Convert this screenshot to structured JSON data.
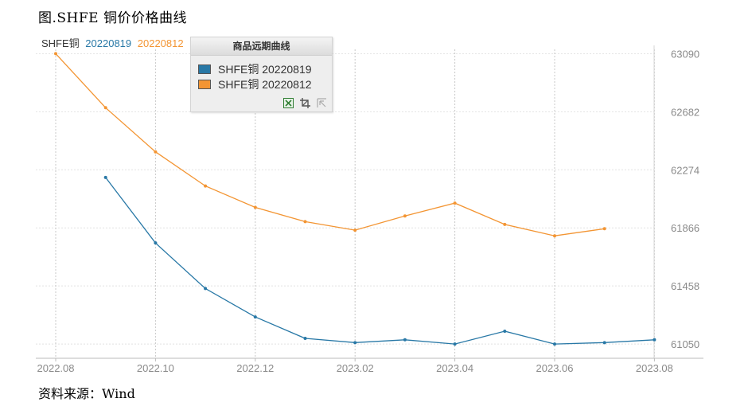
{
  "title": "图.SHFE 铜价价格曲线",
  "source": "资料来源：Wind",
  "legend": {
    "title": "商品远期曲线",
    "items": [
      {
        "label": "SHFE铜 20220819",
        "color": "#2878a6"
      },
      {
        "label": "SHFE铜 20220812",
        "color": "#f39533"
      }
    ],
    "tools": [
      "excel-export-icon",
      "crop-icon",
      "select-icon"
    ]
  },
  "series_header": {
    "prefix": "SHFE铜",
    "labels": [
      "20220819",
      "20220812"
    ]
  },
  "chart_data": {
    "type": "line",
    "xlabel": "",
    "ylabel": "",
    "x_ticks": [
      "2022.08",
      "2022.10",
      "2022.12",
      "2023.02",
      "2023.04",
      "2023.06",
      "2023.08"
    ],
    "y_ticks": [
      61050,
      61458,
      61866,
      62274,
      62682,
      63090
    ],
    "ylim": [
      60950,
      63120
    ],
    "y_axis_position": "right",
    "grid": true,
    "legend_position": "top-left",
    "series": [
      {
        "name": "SHFE铜 20220819",
        "color": "#2878a6",
        "x": [
          "2022.09",
          "2022.10",
          "2022.11",
          "2022.12",
          "2023.01",
          "2023.02",
          "2023.03",
          "2023.04",
          "2023.05",
          "2023.06",
          "2023.07",
          "2023.08"
        ],
        "values": [
          62220,
          61760,
          61440,
          61240,
          61090,
          61060,
          61080,
          61050,
          61140,
          61050,
          61060,
          61080
        ]
      },
      {
        "name": "SHFE铜 20220812",
        "color": "#f39533",
        "x": [
          "2022.08",
          "2022.09",
          "2022.10",
          "2022.11",
          "2022.12",
          "2023.01",
          "2023.02",
          "2023.03",
          "2023.04",
          "2023.05",
          "2023.06",
          "2023.07"
        ],
        "values": [
          63090,
          62710,
          62400,
          62160,
          62010,
          61910,
          61850,
          61950,
          62040,
          61890,
          61810,
          61860
        ]
      }
    ]
  }
}
